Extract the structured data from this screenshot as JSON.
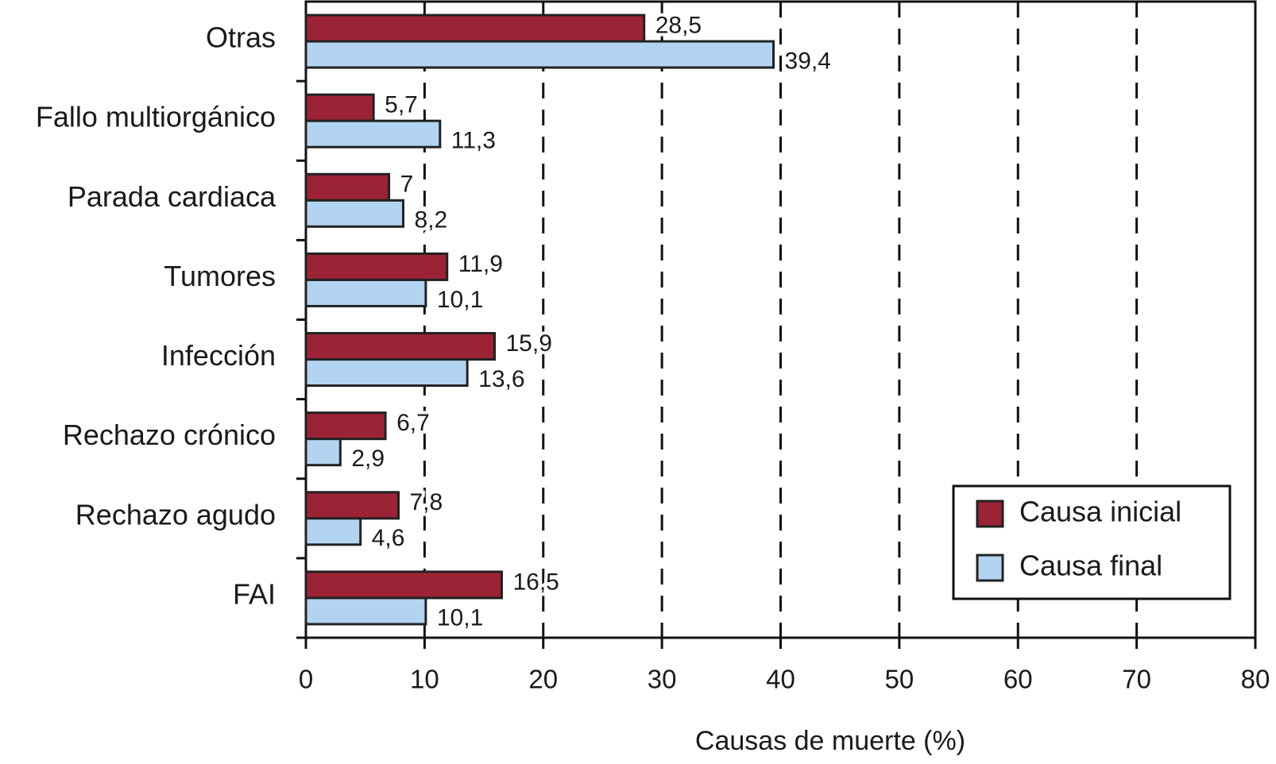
{
  "chart_data": {
    "type": "bar",
    "orientation": "horizontal",
    "categories": [
      "Otras",
      "Fallo multiorgánico",
      "Parada cardiaca",
      "Tumores",
      "Infección",
      "Rechazo crónico",
      "Rechazo agudo",
      "FAI"
    ],
    "series": [
      {
        "name": "Causa inicial",
        "color": "#9b2335",
        "values": [
          28.5,
          5.7,
          7,
          11.9,
          15.9,
          6.7,
          7.8,
          16.5
        ],
        "value_labels": [
          "28,5",
          "5,7",
          "7",
          "11,9",
          "15,9",
          "6,7",
          "7,8",
          "16,5"
        ]
      },
      {
        "name": "Causa final",
        "color": "#b3d4f0",
        "values": [
          39.4,
          11.3,
          8.2,
          10.1,
          13.6,
          2.9,
          4.6,
          10.1
        ],
        "value_labels": [
          "39,4",
          "11,3",
          "8,2",
          "10,1",
          "13,6",
          "2,9",
          "4,6",
          "10,1"
        ]
      }
    ],
    "xlabel": "Causas de muerte (%)",
    "xlim": [
      0,
      80
    ],
    "xticks": [
      0,
      10,
      20,
      30,
      40,
      50,
      60,
      70,
      80
    ],
    "grid": true,
    "legend": "lower right"
  }
}
